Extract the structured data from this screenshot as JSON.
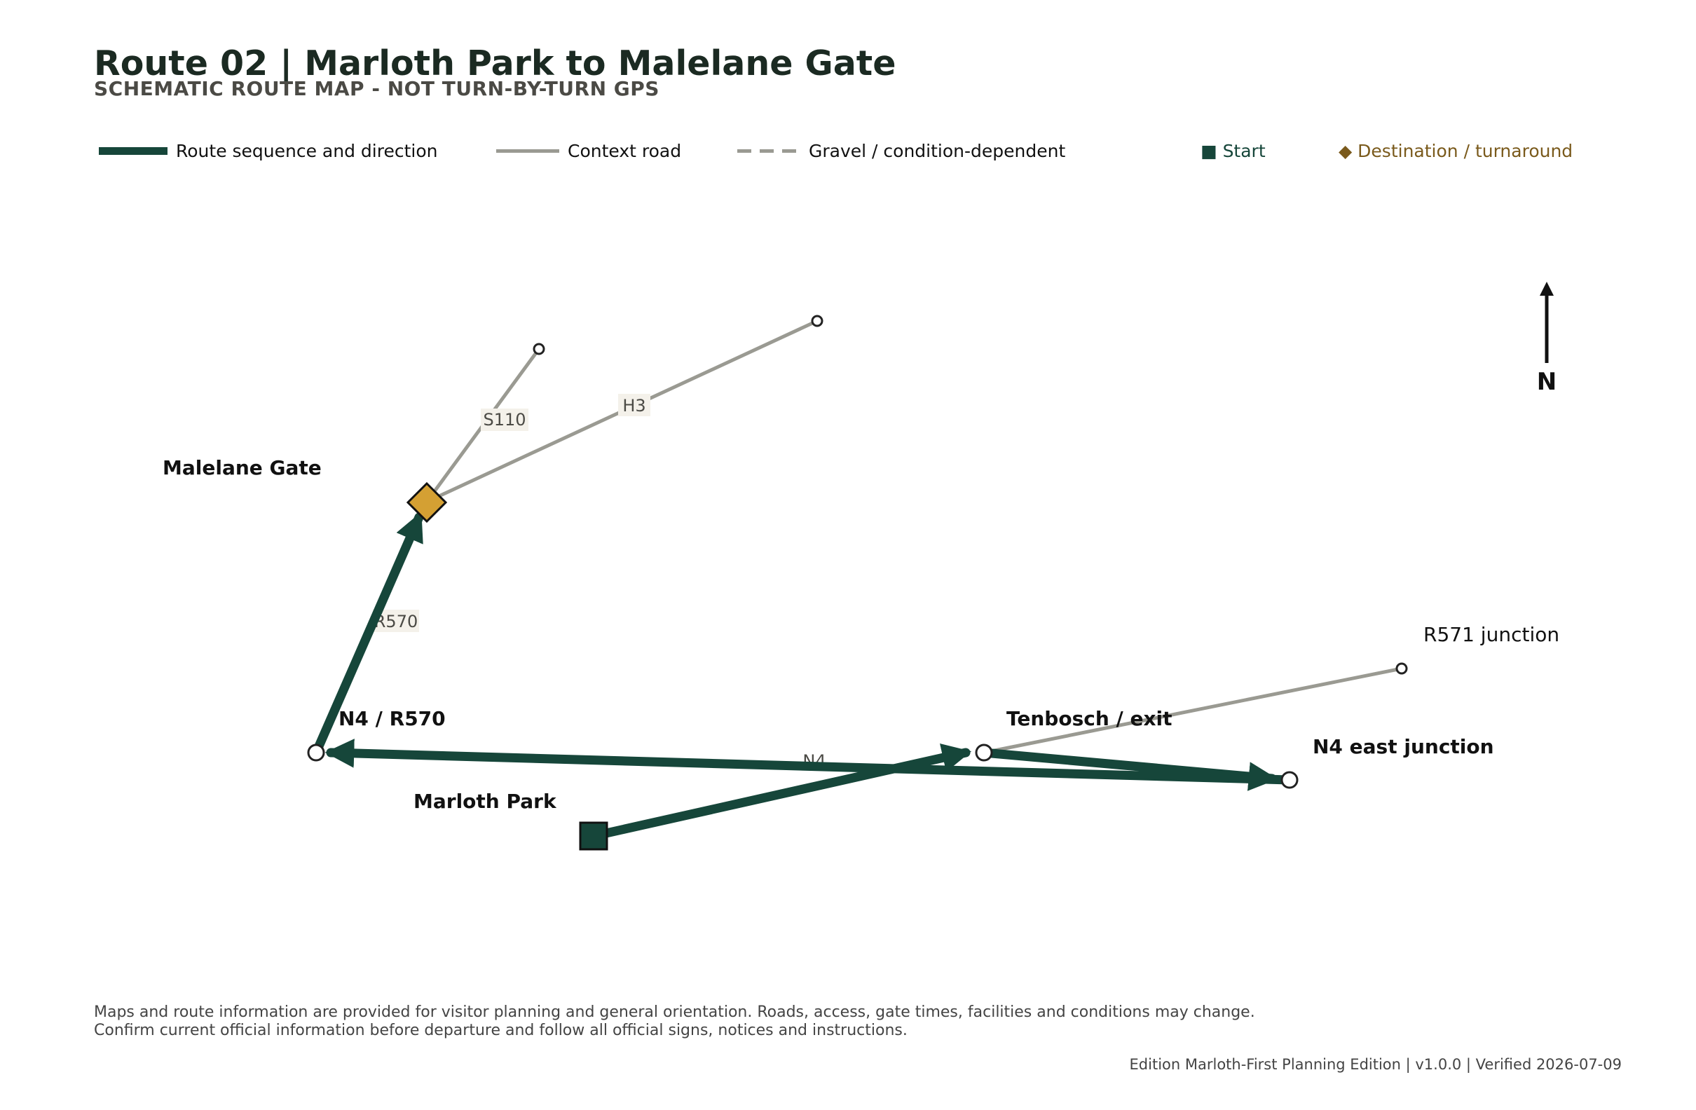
{
  "title": "Route 02 | Marloth Park to Malelane Gate",
  "subtitle": "SCHEMATIC ROUTE MAP - NOT TURN-BY-TURN GPS",
  "legend": {
    "route": "Route sequence and direction",
    "context": "Context road",
    "gravel": "Gravel / condition-dependent",
    "start": "■ Start",
    "destination": "◆ Destination / turnaround"
  },
  "colors": {
    "route": "#16463a",
    "context": "#9a9a92",
    "destination": "#d4a033",
    "start": "#16463a",
    "title": "#1b2a22"
  },
  "places": {
    "marloth_park": "Marloth Park",
    "tenbosch_exit": "Tenbosch / exit",
    "n4_east_junction": "N4 east junction",
    "n4_r570": "N4 / R570",
    "malelane_gate": "Malelane Gate",
    "r571_junction": "R571 junction"
  },
  "road_labels": {
    "s110": "S110",
    "h3": "H3",
    "r570": "R570",
    "n4": "N4"
  },
  "north_label": "N",
  "route_sequence": [
    "Marloth Park",
    "Tenbosch / exit",
    "N4 east junction",
    "N4 / R570",
    "Malelane Gate"
  ],
  "icons": {
    "start": "square-marker",
    "destination": "diamond-marker",
    "waypoint": "circle-marker",
    "north": "north-arrow-icon"
  },
  "disclaimer": {
    "line1": "Maps and route information are provided for visitor planning and general orientation. Roads, access, gate times, facilities and conditions may change.",
    "line2": "Confirm current official information before departure and follow all official signs, notices and instructions."
  },
  "edition": "Edition Marloth-First Planning Edition | v1.0.0 | Verified 2026-07-09"
}
